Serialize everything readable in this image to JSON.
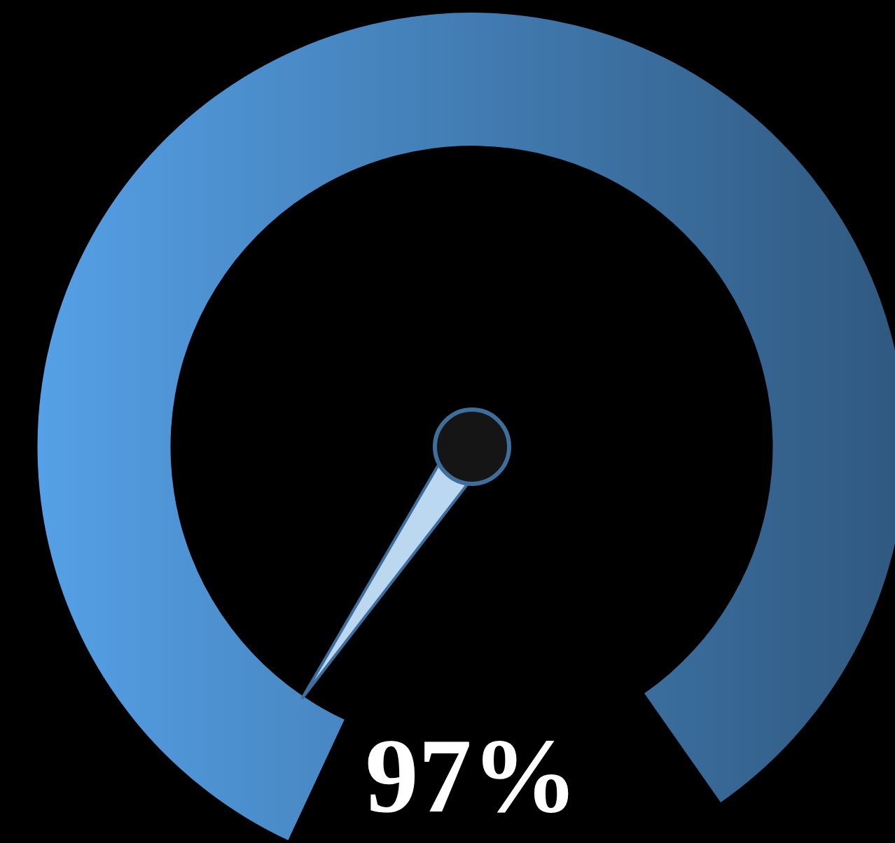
{
  "chart_data": {
    "type": "other",
    "values": [
      97
    ],
    "value_labels": [
      "97%"
    ],
    "color": "#55a0e6"
  }
}
